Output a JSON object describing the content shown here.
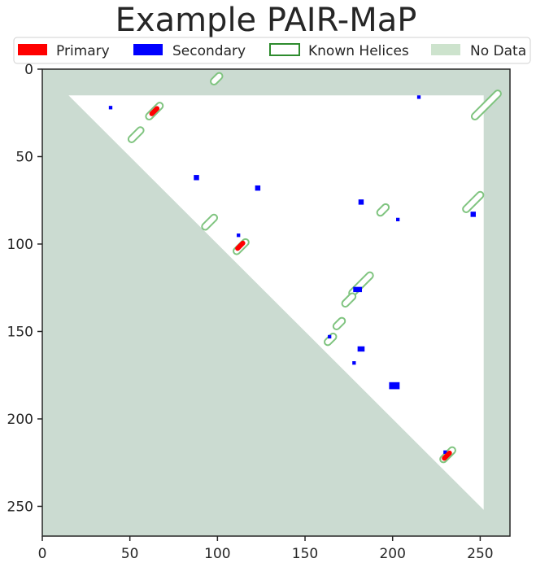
{
  "chart_data": {
    "type": "heatmap",
    "title": "Example PAIR-MaP",
    "xlabel": "",
    "ylabel": "",
    "xlim": [
      0,
      267
    ],
    "ylim": [
      267,
      0
    ],
    "x_ticks": [
      0,
      50,
      100,
      150,
      200,
      250
    ],
    "y_ticks": [
      0,
      50,
      100,
      150,
      200,
      250
    ],
    "no_data_band": {
      "min": 15,
      "max": 252
    },
    "legend": {
      "placement": "top",
      "entries": [
        {
          "name": "Primary",
          "style": "filled",
          "color": "#ff0000"
        },
        {
          "name": "Secondary",
          "style": "filled",
          "color": "#0000ff"
        },
        {
          "name": "Known Helices",
          "style": "outline",
          "color": "#2e8b2e"
        },
        {
          "name": "No Data",
          "style": "filled",
          "color": "#cde3cd"
        }
      ]
    },
    "colors": {
      "primary": "#ff0000",
      "secondary": "#0000ff",
      "known_helix": "#7fc47f",
      "no_data": "#cbdbd1"
    },
    "primary": [
      {
        "x": 64,
        "y": 24
      },
      {
        "x": 113,
        "y": 101
      },
      {
        "x": 231,
        "y": 221
      }
    ],
    "secondary": [
      {
        "x": 39,
        "y": 22,
        "w": 2,
        "h": 2
      },
      {
        "x": 88,
        "y": 62,
        "w": 3,
        "h": 3
      },
      {
        "x": 123,
        "y": 68,
        "w": 3,
        "h": 3
      },
      {
        "x": 182,
        "y": 76,
        "w": 3,
        "h": 3
      },
      {
        "x": 215,
        "y": 16,
        "w": 2,
        "h": 2
      },
      {
        "x": 112,
        "y": 95,
        "w": 2,
        "h": 2
      },
      {
        "x": 203,
        "y": 86,
        "w": 2,
        "h": 2
      },
      {
        "x": 246,
        "y": 83,
        "w": 3,
        "h": 3
      },
      {
        "x": 180,
        "y": 126,
        "w": 5,
        "h": 3
      },
      {
        "x": 164,
        "y": 153,
        "w": 2,
        "h": 2
      },
      {
        "x": 182,
        "y": 160,
        "w": 4,
        "h": 3
      },
      {
        "x": 178,
        "y": 168,
        "w": 2,
        "h": 2
      },
      {
        "x": 201,
        "y": 181,
        "w": 6,
        "h": 4
      },
      {
        "x": 230,
        "y": 219,
        "w": 2,
        "h": 2
      }
    ],
    "known_helices": [
      {
        "x1": 61,
        "y1": 27,
        "x2": 67,
        "y2": 21
      },
      {
        "x1": 98,
        "y1": 7,
        "x2": 101,
        "y2": 4
      },
      {
        "x1": 247,
        "y1": 27,
        "x2": 260,
        "y2": 14
      },
      {
        "x1": 51,
        "y1": 40,
        "x2": 56,
        "y2": 35
      },
      {
        "x1": 93,
        "y1": 90,
        "x2": 98,
        "y2": 85
      },
      {
        "x1": 111,
        "y1": 104,
        "x2": 116,
        "y2": 99
      },
      {
        "x1": 242,
        "y1": 80,
        "x2": 250,
        "y2": 72
      },
      {
        "x1": 193,
        "y1": 82,
        "x2": 196,
        "y2": 79
      },
      {
        "x1": 177,
        "y1": 128,
        "x2": 187,
        "y2": 118
      },
      {
        "x1": 173,
        "y1": 134,
        "x2": 177,
        "y2": 130
      },
      {
        "x1": 168,
        "y1": 147,
        "x2": 171,
        "y2": 144
      },
      {
        "x1": 163,
        "y1": 156,
        "x2": 166,
        "y2": 153
      },
      {
        "x1": 229,
        "y1": 223,
        "x2": 234,
        "y2": 218
      }
    ]
  }
}
